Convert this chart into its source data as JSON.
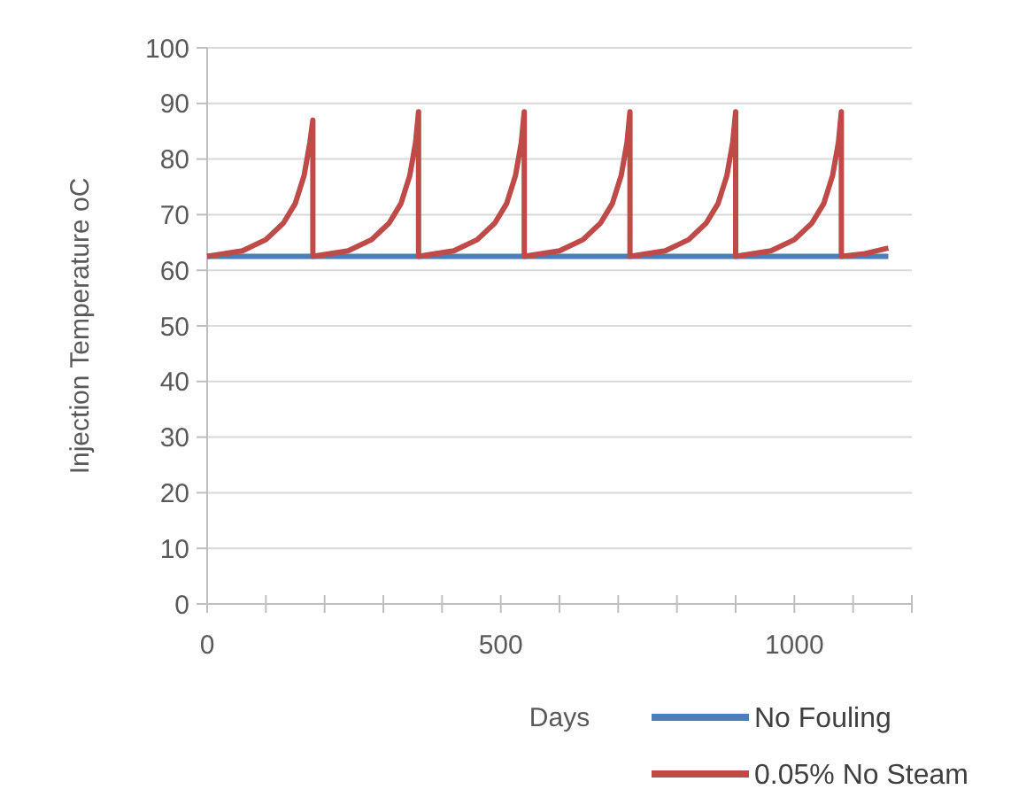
{
  "chart_data": {
    "type": "line",
    "xlabel": "Days",
    "ylabel": "Injection Temperature  oC",
    "xlim": [
      0,
      1200
    ],
    "ylim": [
      0,
      100
    ],
    "xticks": [
      0,
      {
        "value": 100,
        "label": null
      },
      {
        "value": 200,
        "label": null
      },
      {
        "value": 300,
        "label": null
      },
      {
        "value": 400,
        "label": null
      },
      500,
      {
        "value": 600,
        "label": null
      },
      {
        "value": 700,
        "label": null
      },
      {
        "value": 800,
        "label": null
      },
      {
        "value": 900,
        "label": null
      },
      1000,
      {
        "value": 1100,
        "label": null
      },
      {
        "value": 1200,
        "label": null
      }
    ],
    "yticks": [
      0,
      10,
      20,
      30,
      40,
      50,
      60,
      70,
      80,
      90,
      100
    ],
    "grid": "y",
    "legend": "bottom right",
    "marker": "none",
    "line_style": "solid",
    "series": [
      {
        "name": "No Fouling",
        "color": "#4a7ebb",
        "x": [
          0,
          1160
        ],
        "values": [
          62.5,
          62.5
        ]
      },
      {
        "name": "0.05% No Steam",
        "color": "#be4b48",
        "x": [
          0,
          60,
          100,
          130,
          150,
          165,
          175,
          180,
          180,
          240,
          280,
          310,
          330,
          345,
          355,
          360,
          360,
          420,
          460,
          490,
          510,
          525,
          535,
          540,
          540,
          600,
          640,
          670,
          690,
          705,
          715,
          720,
          720,
          780,
          820,
          850,
          870,
          885,
          895,
          900,
          900,
          960,
          1000,
          1030,
          1050,
          1065,
          1075,
          1080,
          1080,
          1120,
          1160
        ],
        "values": [
          62.5,
          63.5,
          65.5,
          68.5,
          72,
          77,
          83,
          87,
          62.5,
          63.5,
          65.5,
          68.5,
          72,
          77,
          83,
          88.5,
          62.5,
          63.5,
          65.5,
          68.5,
          72,
          77,
          83,
          88.5,
          62.5,
          63.5,
          65.5,
          68.5,
          72,
          77,
          83,
          88.5,
          62.5,
          63.5,
          65.5,
          68.5,
          72,
          77,
          83,
          88.5,
          62.5,
          63.5,
          65.5,
          68.5,
          72,
          77,
          83,
          88.5,
          62.5,
          63,
          64
        ]
      }
    ]
  }
}
